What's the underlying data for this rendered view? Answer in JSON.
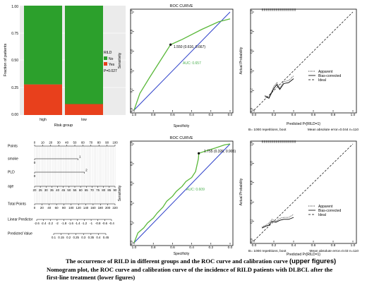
{
  "stacked_bar": {
    "ylabel": "Fraction of patients",
    "xlabel": "Risk group",
    "legend_title": "RILD",
    "p_value": "P=0.027",
    "colors": {
      "No": "#2ca02c",
      "Yes": "#e8401c"
    }
  },
  "roc_top": {
    "title": "ROC CURVE",
    "point_label": "1.550 (0.616, 0.667)",
    "auc_label": "AUC: 0.657"
  },
  "roc_bottom": {
    "title": "ROC CURVE",
    "point_label": "1.755 (0.326, 0.905)",
    "auc_label": "AUC: 0.609"
  },
  "calib_top": {
    "ylabel": "Actual Probability",
    "xlabel": "Predicted Pr{RILD=1}",
    "legend": [
      "Apparent",
      "Bias-corrected",
      "Ideal"
    ],
    "footer_left": "B= 1000 repetitions, boot",
    "footer_right": "Mean absolute error=0.044 n=110"
  },
  "calib_bottom": {
    "ylabel": "Actual Probability",
    "xlabel": "Predicted Pr{RILD=1}",
    "legend": [
      "Apparent",
      "Bias-corrected",
      "Ideal"
    ],
    "footer_left": "B= 1000 repetitions, boot",
    "footer_right": "Mean absolute error=0.03 n=110"
  },
  "nomogram": {
    "rows": [
      "Points",
      "smoke",
      "PLD",
      "age",
      "Total Points",
      "Linear Predictor",
      "Predicted Value"
    ],
    "points_ticks": [
      "0",
      "10",
      "20",
      "30",
      "40",
      "50",
      "60",
      "70",
      "80",
      "90",
      "100"
    ],
    "smoke_levels": [
      "0",
      "1"
    ],
    "pld_levels": [
      "0",
      "2"
    ],
    "age_ticks": [
      "20",
      "25",
      "30",
      "35",
      "40",
      "45",
      "50",
      "55",
      "60",
      "65",
      "70",
      "75",
      "80",
      "85",
      "90"
    ],
    "total_ticks": [
      "0",
      "20",
      "40",
      "60",
      "80",
      "100",
      "120",
      "140",
      "160",
      "180",
      "200",
      "220"
    ],
    "lp_ticks": [
      "-2.6",
      "-2.4",
      "-2.2",
      "-2",
      "-1.8",
      "-1.6",
      "-1.4",
      "-1.2",
      "-1",
      "-0.8",
      "-0.6",
      "-0.4"
    ],
    "pv_ticks": [
      "0.1",
      "0.15",
      "0.2",
      "0.25",
      "0.3",
      "0.35",
      "0.4",
      "0.45"
    ]
  },
  "caption": {
    "line1": "The occurrence of RILD in different groups and the ROC curve and calibration curve",
    "line1_highlight": "(upper figures)",
    "line2": "Nomogram plot, the ROC curve and calibration curve of the incidence of RILD patients with DLBCL after the",
    "line3": "first-line treatment (lower figures)"
  },
  "chart_data": [
    {
      "type": "bar",
      "title": "",
      "xlabel": "Risk group",
      "ylabel": "Fraction of patients",
      "categories": [
        "high",
        "low"
      ],
      "series": [
        {
          "name": "No",
          "values": [
            0.72,
            0.9
          ]
        },
        {
          "name": "Yes",
          "values": [
            0.28,
            0.1
          ]
        }
      ],
      "ylim": [
        0,
        1
      ],
      "yticks": [
        "0.00",
        "0.25",
        "0.50",
        "0.75",
        "1.00"
      ],
      "stacked": true,
      "legend": "right"
    },
    {
      "type": "line",
      "title": "ROC CURVE",
      "xlabel": "Specificity",
      "ylabel": "Sensitivity",
      "x_reversed": true,
      "xlim": [
        1.0,
        0.0
      ],
      "ylim": [
        0,
        1
      ],
      "xticks": [
        "1.0",
        "0.8",
        "0.6",
        "0.4",
        "0.2",
        "0.0"
      ],
      "yticks": [
        "0.0",
        "0.2",
        "0.4",
        "0.6",
        "0.8",
        "1.0"
      ],
      "series": [
        {
          "values": [
            [
              1.0,
              0.0
            ],
            [
              0.94,
              0.17
            ],
            [
              0.84,
              0.33
            ],
            [
              0.62,
              0.667
            ],
            [
              0.5,
              0.72
            ],
            [
              0.3,
              0.82
            ],
            [
              0.12,
              0.9
            ],
            [
              0.0,
              0.93
            ]
          ]
        },
        {
          "values": [
            [
              1.0,
              0.0
            ],
            [
              0.0,
              1.0
            ]
          ]
        }
      ],
      "annotations": [
        "1.550 (0.616, 0.667)",
        "AUC: 0.657"
      ]
    },
    {
      "type": "line",
      "title": "",
      "xlabel": "Predicted Pr{RILD=1}",
      "ylabel": "Actual Probability",
      "xlim": [
        0,
        1
      ],
      "ylim": [
        0,
        1
      ],
      "xticks": [
        "0.0",
        "0.2",
        "0.4",
        "0.6",
        "0.8",
        "1.0"
      ],
      "yticks": [
        "0.0",
        "0.2",
        "0.4",
        "0.6",
        "0.8",
        "1.0"
      ],
      "series": [
        {
          "name": "Apparent",
          "values": [
            [
              0.11,
              0.15
            ],
            [
              0.15,
              0.13
            ],
            [
              0.2,
              0.24
            ],
            [
              0.23,
              0.28
            ],
            [
              0.26,
              0.22
            ],
            [
              0.3,
              0.29
            ],
            [
              0.35,
              0.3
            ],
            [
              0.4,
              0.35
            ]
          ]
        },
        {
          "name": "Bias-corrected",
          "values": [
            [
              0.11,
              0.14
            ],
            [
              0.15,
              0.12
            ],
            [
              0.2,
              0.22
            ],
            [
              0.23,
              0.26
            ],
            [
              0.26,
              0.21
            ],
            [
              0.3,
              0.27
            ],
            [
              0.35,
              0.28
            ],
            [
              0.4,
              0.32
            ]
          ]
        },
        {
          "name": "Ideal",
          "values": [
            [
              0,
              0
            ],
            [
              1,
              1
            ]
          ]
        }
      ],
      "legend": "right"
    },
    {
      "type": "line",
      "title": "",
      "chart_kind": "nomogram",
      "scales": [
        {
          "name": "Points",
          "range": [
            0,
            100
          ]
        },
        {
          "name": "smoke",
          "levels": [
            "0",
            "1"
          ],
          "points": [
            0,
            54
          ]
        },
        {
          "name": "PLD",
          "levels": [
            "0",
            "2"
          ],
          "points": [
            0,
            62
          ]
        },
        {
          "name": "age",
          "range": [
            20,
            90
          ]
        },
        {
          "name": "Total Points",
          "range": [
            0,
            220
          ]
        },
        {
          "name": "Linear Predictor",
          "range": [
            -2.6,
            -0.4
          ]
        },
        {
          "name": "Predicted Value",
          "range": [
            0.1,
            0.45
          ]
        }
      ]
    },
    {
      "type": "line",
      "title": "ROC CURVE",
      "xlabel": "Specificity",
      "ylabel": "Sensitivity",
      "x_reversed": true,
      "xlim": [
        1.0,
        0.0
      ],
      "ylim": [
        0,
        1
      ],
      "xticks": [
        "1.0",
        "0.8",
        "0.6",
        "0.4",
        "0.2",
        "0.0"
      ],
      "yticks": [
        "0.0",
        "0.2",
        "0.4",
        "0.6",
        "0.8",
        "1.0"
      ],
      "series": [
        {
          "values": [
            [
              1.0,
              0.0
            ],
            [
              0.98,
              0.05
            ],
            [
              0.96,
              0.1
            ],
            [
              0.9,
              0.15
            ],
            [
              0.86,
              0.2
            ],
            [
              0.8,
              0.25
            ],
            [
              0.76,
              0.3
            ],
            [
              0.7,
              0.36
            ],
            [
              0.66,
              0.42
            ],
            [
              0.6,
              0.47
            ],
            [
              0.56,
              0.52
            ],
            [
              0.5,
              0.57
            ],
            [
              0.46,
              0.62
            ],
            [
              0.4,
              0.66
            ],
            [
              0.36,
              0.72
            ],
            [
              0.33,
              0.85
            ],
            [
              0.326,
              0.905
            ],
            [
              0.25,
              0.93
            ],
            [
              0.15,
              0.96
            ],
            [
              0.06,
              0.99
            ],
            [
              0.0,
              1.0
            ]
          ]
        },
        {
          "values": [
            [
              1.0,
              0.0
            ],
            [
              0.0,
              1.0
            ]
          ]
        }
      ],
      "annotations": [
        "1.755 (0.326, 0.905)",
        "AUC: 0.609"
      ]
    },
    {
      "type": "line",
      "title": "",
      "xlabel": "Predicted Pr{RILD=1}",
      "ylabel": "Actual Probability",
      "xlim": [
        0,
        1
      ],
      "ylim": [
        0,
        1
      ],
      "xticks": [
        "0.0",
        "0.2",
        "0.4",
        "0.6",
        "0.8",
        "1.0"
      ],
      "yticks": [
        "0.0",
        "0.2",
        "0.4",
        "0.6",
        "0.8",
        "1.0"
      ],
      "series": [
        {
          "name": "Apparent",
          "values": [
            [
              0.08,
              0.14
            ],
            [
              0.12,
              0.16
            ],
            [
              0.15,
              0.18
            ],
            [
              0.18,
              0.22
            ],
            [
              0.22,
              0.2
            ],
            [
              0.26,
              0.23
            ],
            [
              0.3,
              0.24
            ],
            [
              0.35,
              0.24
            ],
            [
              0.4,
              0.27
            ]
          ]
        },
        {
          "name": "Bias-corrected",
          "values": [
            [
              0.08,
              0.13
            ],
            [
              0.12,
              0.15
            ],
            [
              0.15,
              0.16
            ],
            [
              0.18,
              0.2
            ],
            [
              0.22,
              0.19
            ],
            [
              0.26,
              0.21
            ],
            [
              0.3,
              0.22
            ],
            [
              0.35,
              0.22
            ],
            [
              0.4,
              0.24
            ]
          ]
        },
        {
          "name": "Ideal",
          "values": [
            [
              0,
              0
            ],
            [
              1,
              1
            ]
          ]
        }
      ],
      "legend": "right"
    }
  ]
}
